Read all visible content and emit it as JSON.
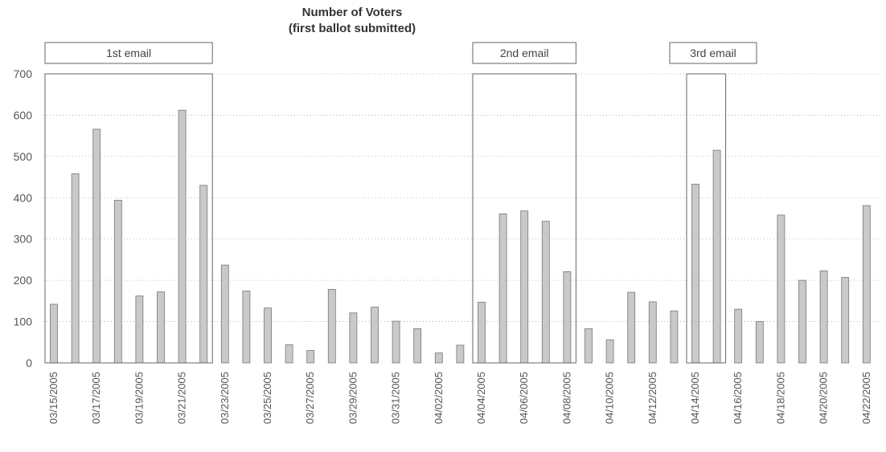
{
  "chart_data": {
    "type": "bar",
    "title": [
      "Number of Voters",
      "(first ballot submitted)"
    ],
    "xlabel": "",
    "ylabel": "",
    "ylim": [
      0,
      700
    ],
    "yticks": [
      0,
      100,
      200,
      300,
      400,
      500,
      600,
      700
    ],
    "grid": true,
    "legend": "none",
    "categories": [
      "03/15/2005",
      "03/16/2005",
      "03/17/2005",
      "03/18/2005",
      "03/19/2005",
      "03/20/2005",
      "03/21/2005",
      "03/22/2005",
      "03/23/2005",
      "03/24/2005",
      "03/25/2005",
      "03/26/2005",
      "03/27/2005",
      "03/28/2005",
      "03/29/2005",
      "03/30/2005",
      "03/31/2005",
      "04/01/2005",
      "04/02/2005",
      "04/03/2005",
      "04/04/2005",
      "04/05/2005",
      "04/06/2005",
      "04/07/2005",
      "04/08/2005",
      "04/09/2005",
      "04/10/2005",
      "04/11/2005",
      "04/12/2005",
      "04/13/2005",
      "04/14/2005",
      "04/15/2005",
      "04/16/2005",
      "04/17/2005",
      "04/18/2005",
      "04/19/2005",
      "04/20/2005",
      "04/21/2005",
      "04/22/2005"
    ],
    "tick_labels": [
      "03/15/2005",
      "03/17/2005",
      "03/19/2005",
      "03/21/2005",
      "03/23/2005",
      "03/25/2005",
      "03/27/2005",
      "03/29/2005",
      "03/31/2005",
      "04/02/2005",
      "04/04/2005",
      "04/06/2005",
      "04/08/2005",
      "04/10/2005",
      "04/12/2005",
      "04/14/2005",
      "04/16/2005",
      "04/18/2005",
      "04/20/2005",
      "04/22/2005"
    ],
    "values": [
      142,
      458,
      566,
      394,
      162,
      172,
      612,
      430,
      237,
      174,
      133,
      44,
      30,
      178,
      121,
      135,
      101,
      83,
      24,
      43,
      147,
      361,
      368,
      343,
      221,
      83,
      56,
      171,
      148,
      126,
      433,
      515,
      130,
      100,
      358,
      200,
      223,
      207,
      381
    ],
    "annotations": [
      {
        "text": "1st email",
        "start": "03/15/2005",
        "end": "03/22/2005"
      },
      {
        "text": "2nd email",
        "start": "04/04/2005",
        "end": "04/08/2005"
      },
      {
        "text": "3rd email",
        "start": "04/14/2005",
        "end": "04/15/2005"
      }
    ]
  }
}
